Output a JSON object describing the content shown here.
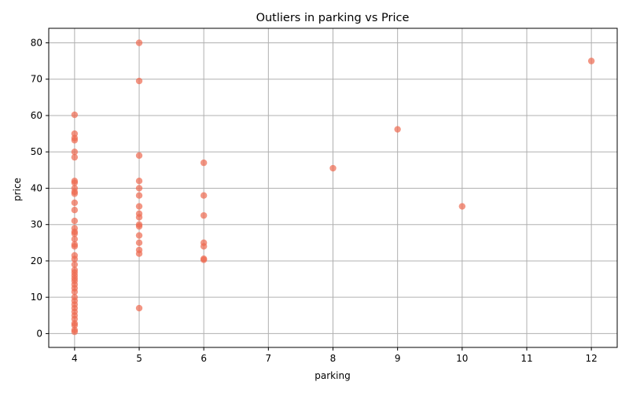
{
  "chart_data": {
    "type": "scatter",
    "title": "Outliers in parking vs Price",
    "xlabel": "parking",
    "ylabel": "price",
    "xlim": [
      3.6,
      12.4
    ],
    "ylim": [
      -3.8,
      84
    ],
    "xticks": [
      4,
      5,
      6,
      7,
      8,
      9,
      10,
      11,
      12
    ],
    "yticks": [
      0,
      10,
      20,
      30,
      40,
      50,
      60,
      70,
      80
    ],
    "grid": true,
    "legend": "none",
    "point_color": "#ee6a50",
    "series": [
      {
        "points": [
          [
            4,
            60.2
          ],
          [
            4,
            55
          ],
          [
            4,
            53.8
          ],
          [
            4,
            53.2
          ],
          [
            4,
            50
          ],
          [
            4,
            48.5
          ],
          [
            4,
            42
          ],
          [
            4,
            41.5
          ],
          [
            4,
            40
          ],
          [
            4,
            39
          ],
          [
            4,
            38.5
          ],
          [
            4,
            36
          ],
          [
            4,
            34
          ],
          [
            4,
            31
          ],
          [
            4,
            29
          ],
          [
            4,
            28
          ],
          [
            4,
            27.5
          ],
          [
            4,
            26
          ],
          [
            4,
            24.5
          ],
          [
            4,
            24
          ],
          [
            4,
            21.5
          ],
          [
            4,
            20.5
          ],
          [
            4,
            19
          ],
          [
            4,
            17.5
          ],
          [
            4,
            16.8
          ],
          [
            4,
            16
          ],
          [
            4,
            15.2
          ],
          [
            4,
            14.5
          ],
          [
            4,
            13.5
          ],
          [
            4,
            12.5
          ],
          [
            4,
            11.5
          ],
          [
            4,
            10
          ],
          [
            4,
            9
          ],
          [
            4,
            8
          ],
          [
            4,
            7
          ],
          [
            4,
            6
          ],
          [
            4,
            5
          ],
          [
            4,
            4
          ],
          [
            4,
            2.8
          ],
          [
            4,
            2.3
          ],
          [
            4,
            1
          ],
          [
            4,
            0.5
          ],
          [
            5,
            80
          ],
          [
            5,
            69.5
          ],
          [
            5,
            49
          ],
          [
            5,
            42
          ],
          [
            5,
            40
          ],
          [
            5,
            38
          ],
          [
            5,
            35
          ],
          [
            5,
            33
          ],
          [
            5,
            32
          ],
          [
            5,
            30
          ],
          [
            5,
            29.5
          ],
          [
            5,
            27
          ],
          [
            5,
            25
          ],
          [
            5,
            23
          ],
          [
            5,
            22
          ],
          [
            5,
            7
          ],
          [
            6,
            47
          ],
          [
            6,
            38
          ],
          [
            6,
            32.5
          ],
          [
            6,
            25
          ],
          [
            6,
            24
          ],
          [
            6,
            20.6
          ],
          [
            6,
            20.3
          ],
          [
            8,
            45.5
          ],
          [
            9,
            56.2
          ],
          [
            10,
            35
          ],
          [
            12,
            75
          ]
        ]
      }
    ]
  }
}
